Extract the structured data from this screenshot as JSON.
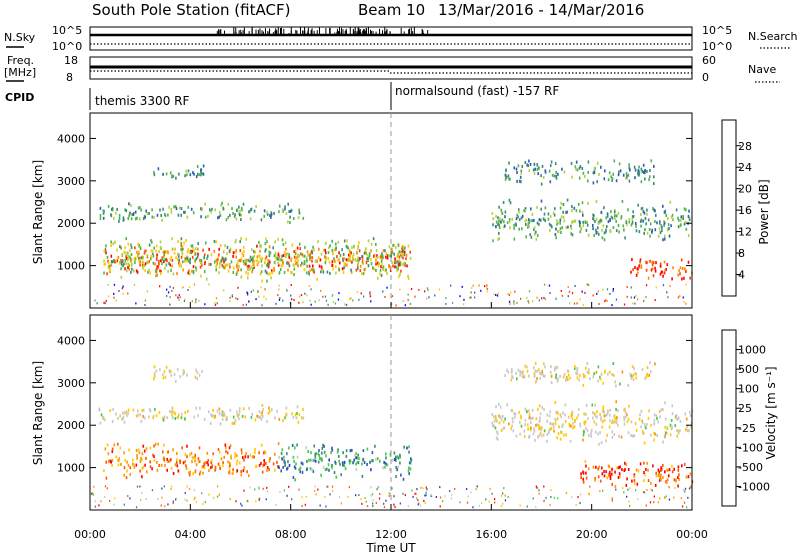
{
  "header": {
    "station": "South Pole Station (fitACF)",
    "beam": "Beam 10",
    "dates": "13/Mar/2016 - 14/Mar/2016"
  },
  "strip_panels": {
    "nsky": {
      "label": "N.Sky",
      "tick_top": "10^5",
      "tick_bottom": "10^0",
      "right_label": "N.Search",
      "right_tick_top": "10^5",
      "right_tick_bottom": "10^0"
    },
    "freq": {
      "label_line1": "Freq.",
      "label_line2": "[MHz]",
      "tick_top": "18",
      "tick_bottom": "8",
      "right_label": "Nave",
      "right_tick_top": "60",
      "right_tick_bottom": "0"
    },
    "cpid": {
      "label": "CPID",
      "segments": [
        {
          "text": "themis 3300 RF",
          "start_hour": 0
        },
        {
          "text": "normalsound (fast) -157 RF",
          "start_hour": 12
        }
      ]
    }
  },
  "colors": {
    "power": [
      "#0000ff",
      "#2f5fb0",
      "#3c8a78",
      "#4fb44f",
      "#b4d23c",
      "#ffc800",
      "#ff8c00",
      "#ff4600",
      "#ff0000"
    ],
    "velocity": [
      "#ff0000",
      "#ff5a00",
      "#ff9600",
      "#ffc800",
      "#c8c8c8",
      "#c8c8c8",
      "#46c846",
      "#3c8a78",
      "#2f5fb0",
      "#2040c0"
    ]
  },
  "chart_data": [
    {
      "type": "heatmap",
      "title": "Power",
      "ylabel": "Slant Range [km]",
      "xlabel": "Time UT",
      "xlim": [
        "00:00",
        "00:00"
      ],
      "ylim": [
        0,
        4600
      ],
      "y_ticks": [
        "1000",
        "2000",
        "3000",
        "4000"
      ],
      "x_ticks": [
        "00:00",
        "04:00",
        "08:00",
        "12:00",
        "16:00",
        "20:00",
        "00:00"
      ],
      "colorbar": {
        "label": "Power [dB]",
        "ticks": [
          "4",
          "8",
          "12",
          "16",
          "20",
          "24",
          "28"
        ]
      },
      "regions": [
        {
          "t0": 0.5,
          "t1": 12.8,
          "r0": 750,
          "r1": 1500,
          "level": 0.8
        },
        {
          "t0": 0.5,
          "t1": 12.8,
          "r0": 600,
          "r1": 1700,
          "level": 0.45
        },
        {
          "t0": 0.3,
          "t1": 8.5,
          "r0": 2000,
          "r1": 2500,
          "level": 0.35
        },
        {
          "t0": 2.5,
          "t1": 4.5,
          "r0": 3000,
          "r1": 3400,
          "level": 0.3
        },
        {
          "t0": 16.0,
          "t1": 24.0,
          "r0": 1500,
          "r1": 2600,
          "level": 0.35
        },
        {
          "t0": 16.5,
          "t1": 22.5,
          "r0": 2900,
          "r1": 3500,
          "level": 0.3
        },
        {
          "t0": 21.5,
          "t1": 24.0,
          "r0": 600,
          "r1": 1200,
          "level": 0.85
        }
      ]
    },
    {
      "type": "heatmap",
      "title": "Velocity",
      "ylabel": "Slant Range [km]",
      "xlabel": "Time UT",
      "ylim": [
        0,
        4600
      ],
      "y_ticks": [
        "1000",
        "2000",
        "3000",
        "4000"
      ],
      "x_ticks": [
        "00:00",
        "04:00",
        "08:00",
        "12:00",
        "16:00",
        "20:00",
        "00:00"
      ],
      "colorbar": {
        "label": "Velocity [m s⁻¹]",
        "ticks": [
          "1000",
          "500",
          "100",
          "25",
          "-25",
          "-100",
          "-500",
          "-1000"
        ]
      },
      "regions": [
        {
          "t0": 0.5,
          "t1": 7.5,
          "r0": 700,
          "r1": 1600,
          "level": 0.2
        },
        {
          "t0": 7.5,
          "t1": 12.8,
          "r0": 700,
          "r1": 1600,
          "level": 0.75
        },
        {
          "t0": 0.3,
          "t1": 8.5,
          "r0": 2000,
          "r1": 2500,
          "level": 0.45
        },
        {
          "t0": 2.5,
          "t1": 4.5,
          "r0": 3000,
          "r1": 3400,
          "level": 0.45
        },
        {
          "t0": 16.0,
          "t1": 24.0,
          "r0": 1500,
          "r1": 2600,
          "level": 0.45
        },
        {
          "t0": 16.5,
          "t1": 22.5,
          "r0": 2900,
          "r1": 3500,
          "level": 0.45
        },
        {
          "t0": 19.5,
          "t1": 24.0,
          "r0": 500,
          "r1": 1200,
          "level": 0.15
        }
      ]
    }
  ]
}
